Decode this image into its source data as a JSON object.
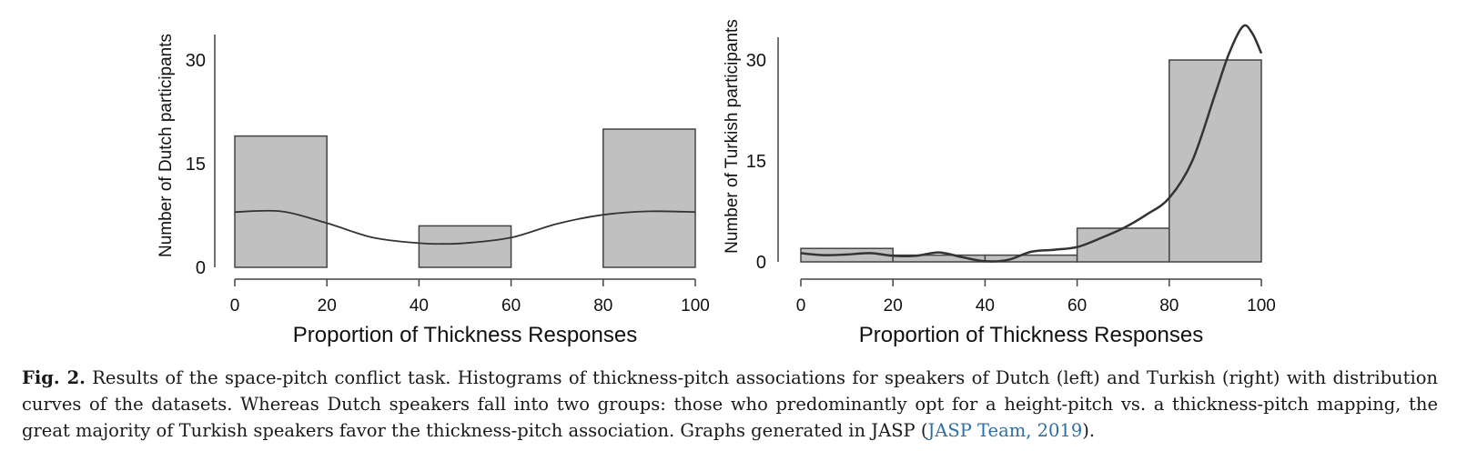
{
  "chart_data": [
    {
      "type": "bar",
      "xlabel": "Proportion of Thickness Responses",
      "ylabel": "Number of Dutch participants",
      "x_ticks": [
        0,
        20,
        40,
        60,
        80,
        100
      ],
      "y_ticks": [
        0,
        15,
        30
      ],
      "xlim": [
        0,
        100
      ],
      "ylim": [
        0,
        30
      ],
      "bins": [
        {
          "from": 0,
          "to": 20,
          "count": 19
        },
        {
          "from": 20,
          "to": 40,
          "count": 0
        },
        {
          "from": 40,
          "to": 60,
          "count": 6
        },
        {
          "from": 60,
          "to": 80,
          "count": 0
        },
        {
          "from": 80,
          "to": 100,
          "count": 20
        }
      ],
      "density_curve": {
        "x": [
          0,
          10,
          20,
          30,
          40,
          45,
          50,
          60,
          70,
          80,
          90,
          100
        ],
        "y": [
          8,
          8.1,
          6.4,
          4.3,
          3.5,
          3.4,
          3.5,
          4.3,
          6.3,
          7.6,
          8.1,
          8
        ]
      }
    },
    {
      "type": "bar",
      "xlabel": "Proportion of Thickness Responses",
      "ylabel": "Number of Turkish participants",
      "x_ticks": [
        0,
        20,
        40,
        60,
        80,
        100
      ],
      "y_ticks": [
        0,
        15,
        30
      ],
      "xlim": [
        0,
        100
      ],
      "ylim": [
        0,
        30
      ],
      "bins": [
        {
          "from": 0,
          "to": 20,
          "count": 2
        },
        {
          "from": 20,
          "to": 40,
          "count": 1
        },
        {
          "from": 40,
          "to": 60,
          "count": 1
        },
        {
          "from": 60,
          "to": 80,
          "count": 5
        },
        {
          "from": 80,
          "to": 100,
          "count": 30
        }
      ],
      "density_curve": {
        "x": [
          0,
          5,
          10,
          15,
          20,
          25,
          30,
          35,
          40,
          45,
          50,
          55,
          60,
          65,
          70,
          75,
          80,
          85,
          90,
          93,
          96,
          98,
          100
        ],
        "y": [
          1.3,
          1,
          1.1,
          1.3,
          0.9,
          0.9,
          1.4,
          0.7,
          0.1,
          0.3,
          1.5,
          1.8,
          2.2,
          3.5,
          5,
          7,
          9.5,
          15,
          25,
          31,
          35,
          34,
          31
        ]
      }
    }
  ],
  "caption": {
    "label": "Fig. 2.",
    "text_before": " Results of the space-pitch conflict task. Histograms of thickness-pitch associations for speakers of Dutch (left) and Turkish (right) with distribution curves of the datasets. Whereas Dutch speakers fall into two groups: those who predominantly opt for a height-pitch vs. a thickness-pitch mapping, the great majority of Turkish speakers favor the thickness-pitch association. Graphs generated in JASP (",
    "citation": "JASP Team, 2019",
    "text_after": ")."
  },
  "colors": {
    "bar_fill": "#c0c0c0",
    "bar_stroke": "#444444",
    "curve": "#333333",
    "axis": "#444444",
    "citation_link": "#2a6fa8"
  }
}
